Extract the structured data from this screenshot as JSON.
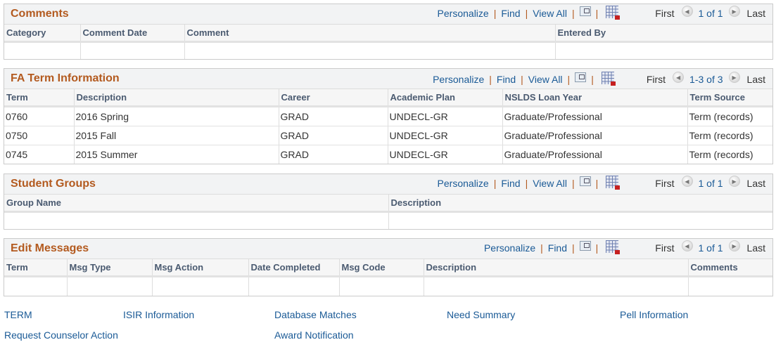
{
  "toolbar": {
    "personalize": "Personalize",
    "find": "Find",
    "view_all": "View All",
    "first": "First",
    "last": "Last",
    "separator": "|"
  },
  "comments": {
    "title": "Comments",
    "count": "1 of 1",
    "columns": [
      "Category",
      "Comment Date",
      "Comment",
      "Entered By"
    ]
  },
  "fa_term": {
    "title": "FA Term Information",
    "count": "1-3 of 3",
    "columns": [
      "Term",
      "Description",
      "Career",
      "Academic Plan",
      "NSLDS Loan Year",
      "Term Source"
    ],
    "rows": [
      [
        "0760",
        "2016 Spring",
        "GRAD",
        "UNDECL-GR",
        "Graduate/Professional",
        "Term (records)"
      ],
      [
        "0750",
        "2015 Fall",
        "GRAD",
        "UNDECL-GR",
        "Graduate/Professional",
        "Term (records)"
      ],
      [
        "0745",
        "2015 Summer",
        "GRAD",
        "UNDECL-GR",
        "Graduate/Professional",
        "Term (records)"
      ]
    ]
  },
  "student_groups": {
    "title": "Student Groups",
    "count": "1 of 1",
    "columns": [
      "Group Name",
      "Description"
    ]
  },
  "edit_messages": {
    "title": "Edit Messages",
    "count": "1 of 1",
    "columns": [
      "Term",
      "Msg Type",
      "Msg Action",
      "Date Completed",
      "Msg Code",
      "Description",
      "Comments"
    ]
  },
  "links": [
    "TERM",
    "ISIR Information",
    "Database Matches",
    "Need Summary",
    "Pell Information",
    "Request Counselor Action",
    "Award Notification"
  ],
  "colors": {
    "title": "#b35a1f",
    "link": "#1a5a96",
    "header_text": "#4a5a70"
  }
}
